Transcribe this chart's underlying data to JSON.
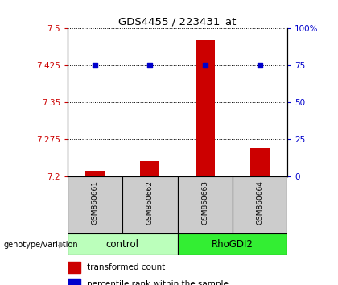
{
  "title": "GDS4455 / 223431_at",
  "samples": [
    "GSM860661",
    "GSM860662",
    "GSM860663",
    "GSM860664"
  ],
  "bar_values": [
    7.213,
    7.232,
    7.476,
    7.258
  ],
  "percentile_pct": [
    75,
    75,
    75,
    75
  ],
  "ylim_left": [
    7.2,
    7.5
  ],
  "ylim_right": [
    0,
    100
  ],
  "yticks_left": [
    7.2,
    7.275,
    7.35,
    7.425,
    7.5
  ],
  "ytick_labels_left": [
    "7.2",
    "7.275",
    "7.35",
    "7.425",
    "7.5"
  ],
  "yticks_right": [
    0,
    25,
    50,
    75,
    100
  ],
  "ytick_labels_right": [
    "0",
    "25",
    "50",
    "75",
    "100%"
  ],
  "groups": [
    {
      "label": "control",
      "samples": [
        0,
        1
      ],
      "color": "#bbffbb"
    },
    {
      "label": "RhoGDI2",
      "samples": [
        2,
        3
      ],
      "color": "#33ee33"
    }
  ],
  "bar_color": "#cc0000",
  "dot_color": "#0000cc",
  "bar_width": 0.35,
  "legend_bar_label": "transformed count",
  "legend_dot_label": "percentile rank within the sample",
  "xlabel_group": "genotype/variation",
  "sample_box_color": "#cccccc",
  "arrow_color": "#999999"
}
